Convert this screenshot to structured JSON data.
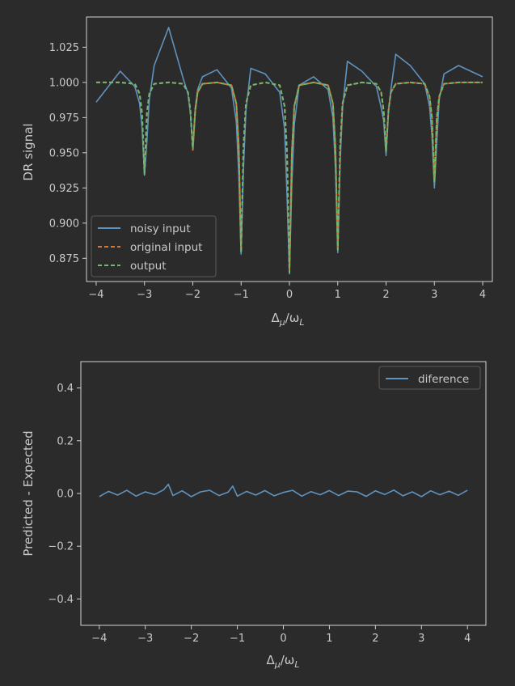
{
  "chart_data": [
    {
      "type": "line",
      "title": "",
      "xlabel": "Δμ/ωL",
      "ylabel": "DR signal",
      "xlim": [
        -4.2,
        4.2
      ],
      "ylim": [
        0.8585,
        1.0465
      ],
      "xticks": [
        -4,
        -3,
        -2,
        -1,
        0,
        1,
        2,
        3,
        4
      ],
      "xtick_labels": [
        "−4",
        "−3",
        "−2",
        "−1",
        "0",
        "1",
        "2",
        "3",
        "4"
      ],
      "yticks": [
        0.875,
        0.9,
        0.925,
        0.95,
        0.975,
        1.0,
        1.025
      ],
      "ytick_labels": [
        "0.875",
        "0.900",
        "0.925",
        "0.950",
        "0.975",
        "1.000",
        "1.025"
      ],
      "grid": false,
      "legend_position": "lower-left",
      "x": [
        -4,
        -3.5,
        -3.2,
        -3.1,
        -3.05,
        -3,
        -2.95,
        -2.9,
        -2.8,
        -2.5,
        -2.2,
        -2.1,
        -2.05,
        -2,
        -1.95,
        -1.9,
        -1.8,
        -1.5,
        -1.2,
        -1.1,
        -1.05,
        -1,
        -0.95,
        -0.9,
        -0.8,
        -0.5,
        -0.2,
        -0.1,
        -0.05,
        0,
        0.05,
        0.1,
        0.2,
        0.5,
        0.8,
        0.9,
        0.95,
        1,
        1.05,
        1.1,
        1.2,
        1.5,
        1.8,
        1.9,
        1.95,
        2,
        2.05,
        2.1,
        2.2,
        2.5,
        2.8,
        2.9,
        2.95,
        3,
        3.05,
        3.1,
        3.2,
        3.5,
        4
      ],
      "series": [
        {
          "name": "noisy input",
          "style": "solid",
          "color": "#5f93bf",
          "values": [
            0.986,
            1.008,
            0.997,
            0.985,
            0.968,
            0.934,
            0.958,
            0.988,
            1.012,
            1.039,
            1.003,
            0.992,
            0.978,
            0.953,
            0.982,
            0.995,
            1.004,
            1.009,
            0.996,
            0.972,
            0.935,
            0.878,
            0.94,
            0.98,
            1.01,
            1.006,
            0.993,
            0.967,
            0.92,
            0.864,
            0.928,
            0.97,
            0.998,
            1.004,
            0.995,
            0.975,
            0.94,
            0.879,
            0.944,
            0.982,
            1.015,
            1.008,
            0.997,
            0.982,
            0.973,
            0.948,
            0.979,
            0.995,
            1.02,
            1.012,
            0.999,
            0.983,
            0.962,
            0.925,
            0.958,
            0.988,
            1.006,
            1.012,
            1.004
          ]
        },
        {
          "name": "original input",
          "style": "dashed",
          "color": "#d9772e",
          "values": [
            1.0,
            1.0,
            0.999,
            0.992,
            0.978,
            0.935,
            0.978,
            0.992,
            0.999,
            1.0,
            0.999,
            0.993,
            0.98,
            0.952,
            0.98,
            0.993,
            0.999,
            1.0,
            0.998,
            0.985,
            0.955,
            0.88,
            0.955,
            0.985,
            0.998,
            1.0,
            0.998,
            0.983,
            0.95,
            0.866,
            0.95,
            0.983,
            0.998,
            1.0,
            0.998,
            0.985,
            0.955,
            0.882,
            0.955,
            0.985,
            0.998,
            1.0,
            0.999,
            0.993,
            0.98,
            0.952,
            0.98,
            0.993,
            0.999,
            1.0,
            0.999,
            0.99,
            0.975,
            0.93,
            0.975,
            0.99,
            0.999,
            1.0,
            1.0
          ]
        },
        {
          "name": "output",
          "style": "dashed",
          "color": "#6fb86f",
          "values": [
            1.0,
            1.0,
            0.999,
            0.992,
            0.978,
            0.935,
            0.978,
            0.992,
            0.999,
            1.0,
            0.999,
            0.993,
            0.98,
            0.953,
            0.98,
            0.993,
            0.999,
            1.0,
            0.998,
            0.985,
            0.955,
            0.879,
            0.955,
            0.985,
            0.998,
            1.0,
            0.998,
            0.983,
            0.95,
            0.865,
            0.95,
            0.983,
            0.998,
            1.0,
            0.998,
            0.985,
            0.955,
            0.881,
            0.955,
            0.985,
            0.998,
            1.0,
            0.999,
            0.993,
            0.98,
            0.951,
            0.98,
            0.993,
            0.999,
            1.0,
            0.999,
            0.99,
            0.975,
            0.929,
            0.975,
            0.99,
            0.999,
            1.0,
            1.0
          ]
        }
      ]
    },
    {
      "type": "line",
      "title": "",
      "xlabel": "Δμ/ωL",
      "ylabel": "Predicted - Expected",
      "xlim": [
        -4.4,
        4.4
      ],
      "ylim": [
        -0.5,
        0.5
      ],
      "xticks": [
        -4,
        -3,
        -2,
        -1,
        0,
        1,
        2,
        3,
        4
      ],
      "xtick_labels": [
        "−4",
        "−3",
        "−2",
        "−1",
        "0",
        "1",
        "2",
        "3",
        "4"
      ],
      "yticks": [
        -0.4,
        -0.2,
        0.0,
        0.2,
        0.4
      ],
      "ytick_labels": [
        "−0.4",
        "−0.2",
        "0.0",
        "0.2",
        "0.4"
      ],
      "grid": false,
      "legend_position": "upper-right",
      "x": [
        -4,
        -3.8,
        -3.6,
        -3.4,
        -3.2,
        -3,
        -2.8,
        -2.6,
        -2.5,
        -2.4,
        -2.2,
        -2,
        -1.8,
        -1.6,
        -1.4,
        -1.2,
        -1.1,
        -1,
        -0.8,
        -0.6,
        -0.4,
        -0.2,
        0,
        0.2,
        0.4,
        0.6,
        0.8,
        1,
        1.2,
        1.4,
        1.6,
        1.8,
        2,
        2.2,
        2.4,
        2.6,
        2.8,
        3,
        3.2,
        3.4,
        3.6,
        3.8,
        4
      ],
      "series": [
        {
          "name": "diference",
          "style": "solid",
          "color": "#5f93bf",
          "values": [
            -0.012,
            0.008,
            -0.006,
            0.012,
            -0.01,
            0.006,
            -0.004,
            0.014,
            0.035,
            -0.008,
            0.01,
            -0.012,
            0.006,
            0.012,
            -0.008,
            0.005,
            0.028,
            -0.01,
            0.008,
            -0.006,
            0.011,
            -0.009,
            0.004,
            0.012,
            -0.01,
            0.007,
            -0.005,
            0.011,
            -0.008,
            0.009,
            0.006,
            -0.011,
            0.01,
            -0.004,
            0.013,
            -0.009,
            0.006,
            -0.012,
            0.01,
            -0.005,
            0.009,
            -0.007,
            0.012
          ]
        }
      ]
    }
  ],
  "plots": [
    {
      "xlabel_main": "Δ",
      "xlabel_sub1": "μ",
      "xlabel_mid": "/ω",
      "xlabel_sub2": "L",
      "ylabel": "DR signal"
    },
    {
      "xlabel_main": "Δ",
      "xlabel_sub1": "μ",
      "xlabel_mid": "/ω",
      "xlabel_sub2": "L",
      "ylabel": "Predicted - Expected"
    }
  ]
}
